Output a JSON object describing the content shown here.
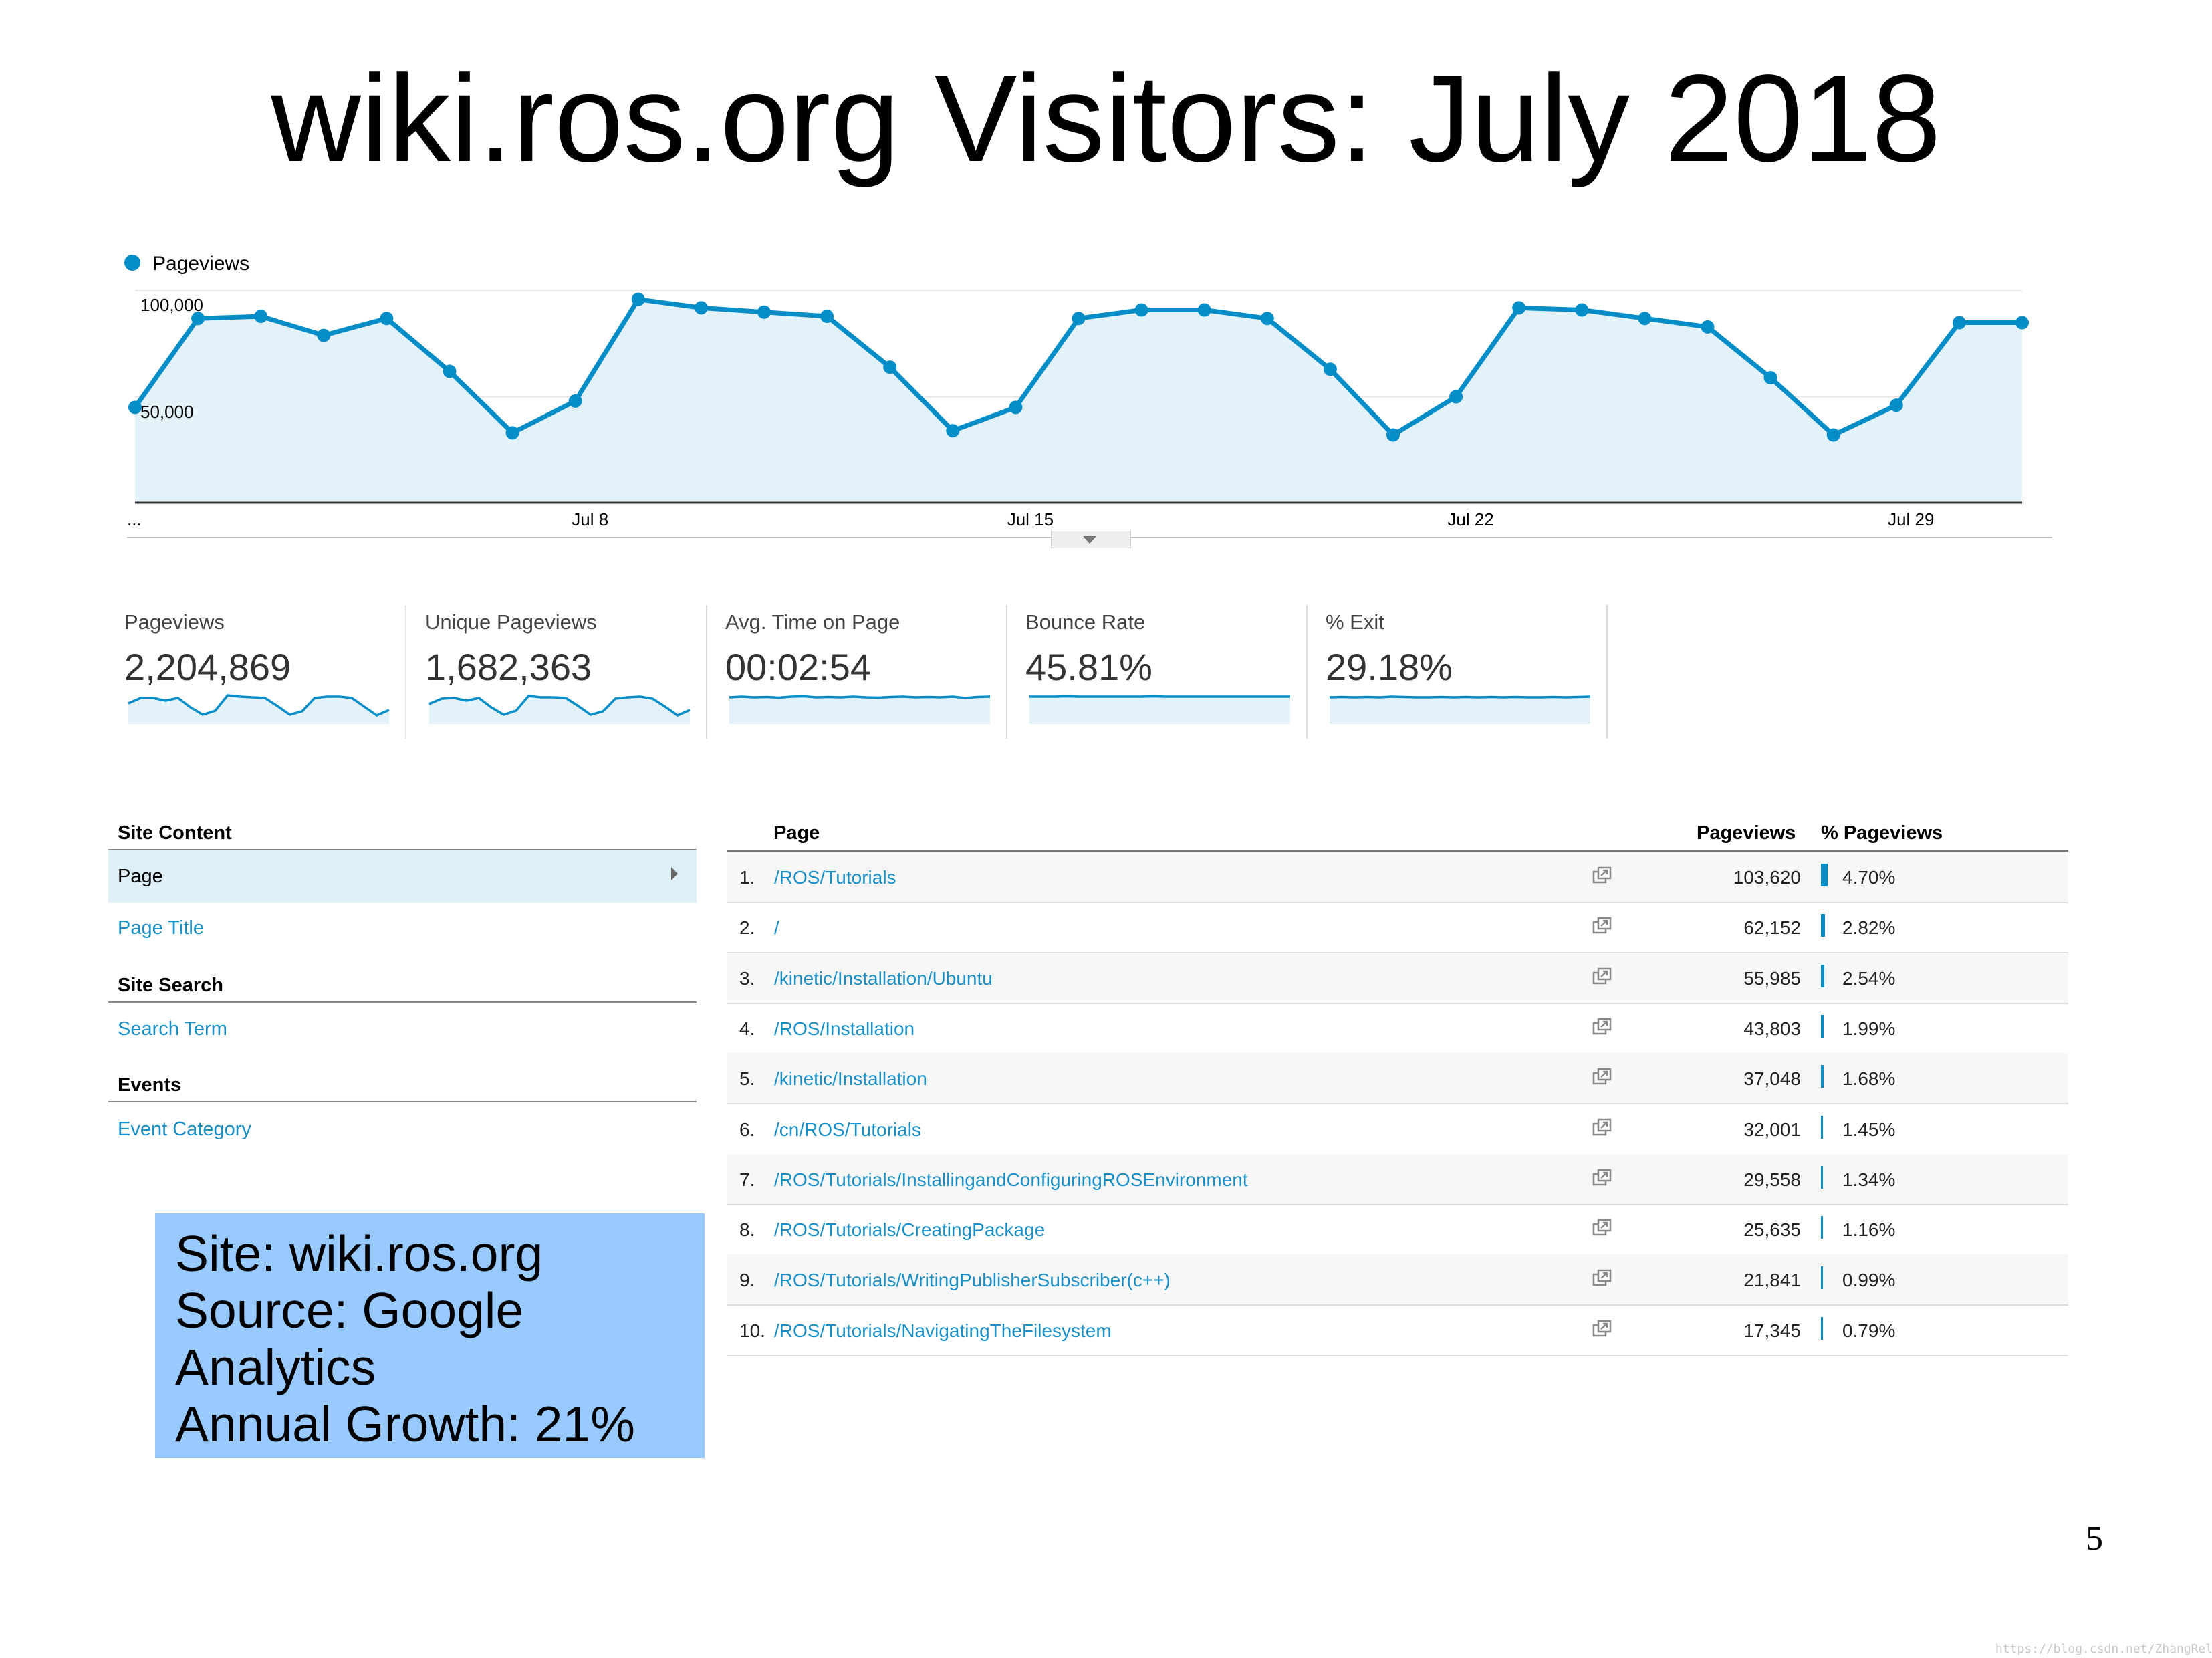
{
  "slide": {
    "title": "wiki.ros.org Visitors: July 2018",
    "page_number": "5",
    "watermark": "https://blog.csdn.net/ZhangRelay"
  },
  "colors": {
    "accent": "#058dc7",
    "fill": "#e3f1f8",
    "link": "#1a8fc6",
    "info_box": "#99caff"
  },
  "chart_data": {
    "type": "area",
    "legend": [
      "Pageviews"
    ],
    "y_ticks": [
      "100,000",
      "50,000"
    ],
    "ylim": [
      0,
      100000
    ],
    "x_ticks": [
      "...",
      "Jul 8",
      "Jul 15",
      "Jul 22",
      "Jul 29"
    ],
    "x": [
      "Jul 1",
      "Jul 2",
      "Jul 3",
      "Jul 4",
      "Jul 5",
      "Jul 6",
      "Jul 7",
      "Jul 8",
      "Jul 9",
      "Jul 10",
      "Jul 11",
      "Jul 12",
      "Jul 13",
      "Jul 14",
      "Jul 15",
      "Jul 16",
      "Jul 17",
      "Jul 18",
      "Jul 19",
      "Jul 20",
      "Jul 21",
      "Jul 22",
      "Jul 23",
      "Jul 24",
      "Jul 25",
      "Jul 26",
      "Jul 27",
      "Jul 28",
      "Jul 29",
      "Jul 30",
      "Jul 31"
    ],
    "series": [
      {
        "name": "Pageviews",
        "values": [
          45000,
          87000,
          88000,
          79000,
          87000,
          62000,
          33000,
          48000,
          96000,
          92000,
          90000,
          88000,
          64000,
          34000,
          45000,
          87000,
          91000,
          91000,
          87000,
          63000,
          32000,
          50000,
          92000,
          91000,
          87000,
          83000,
          59000,
          32000,
          46000,
          85000,
          85000
        ]
      }
    ]
  },
  "metrics": [
    {
      "label": "Pageviews",
      "value": "2,204,869",
      "spark": [
        0.62,
        0.78,
        0.78,
        0.7,
        0.78,
        0.5,
        0.28,
        0.4,
        0.86,
        0.82,
        0.8,
        0.78,
        0.54,
        0.28,
        0.38,
        0.78,
        0.82,
        0.82,
        0.78,
        0.52,
        0.26,
        0.42
      ]
    },
    {
      "label": "Unique Pageviews",
      "value": "1,682,363",
      "spark": [
        0.6,
        0.76,
        0.78,
        0.7,
        0.78,
        0.5,
        0.28,
        0.4,
        0.84,
        0.8,
        0.8,
        0.78,
        0.54,
        0.28,
        0.38,
        0.76,
        0.8,
        0.82,
        0.76,
        0.52,
        0.26,
        0.42
      ]
    },
    {
      "label": "Avg. Time on Page",
      "value": "00:02:54",
      "spark": [
        0.8,
        0.82,
        0.8,
        0.81,
        0.79,
        0.82,
        0.83,
        0.8,
        0.81,
        0.8,
        0.82,
        0.8,
        0.79,
        0.81,
        0.82,
        0.8,
        0.81,
        0.8,
        0.82,
        0.78,
        0.81,
        0.82
      ]
    },
    {
      "label": "Bounce Rate",
      "value": "45.81%",
      "spark": [
        0.82,
        0.82,
        0.82,
        0.83,
        0.82,
        0.82,
        0.82,
        0.82,
        0.82,
        0.82,
        0.83,
        0.82,
        0.82,
        0.82,
        0.82,
        0.82,
        0.82,
        0.82,
        0.82,
        0.82,
        0.82,
        0.82
      ]
    },
    {
      "label": "% Exit",
      "value": "29.18%",
      "spark": [
        0.8,
        0.81,
        0.8,
        0.81,
        0.8,
        0.82,
        0.81,
        0.8,
        0.8,
        0.81,
        0.8,
        0.81,
        0.8,
        0.81,
        0.8,
        0.81,
        0.8,
        0.8,
        0.81,
        0.8,
        0.81,
        0.82
      ]
    }
  ],
  "nav": {
    "site_content_heading": "Site Content",
    "page_label": "Page",
    "page_title_label": "Page Title",
    "site_search_heading": "Site Search",
    "search_term_label": "Search Term",
    "events_heading": "Events",
    "event_category_label": "Event Category"
  },
  "info_box": {
    "lines": [
      "Site: wiki.ros.org",
      "Source: Google",
      "Analytics",
      "Annual Growth: 21%"
    ]
  },
  "table": {
    "headers": {
      "page": "Page",
      "pageviews": "Pageviews",
      "pct": "% Pageviews"
    },
    "rows": [
      {
        "rank": "1.",
        "page": "/ROS/Tutorials",
        "pageviews": "103,620",
        "pct": "4.70%",
        "share": 0.047
      },
      {
        "rank": "2.",
        "page": "/",
        "pageviews": "62,152",
        "pct": "2.82%",
        "share": 0.0282
      },
      {
        "rank": "3.",
        "page": "/kinetic/Installation/Ubuntu",
        "pageviews": "55,985",
        "pct": "2.54%",
        "share": 0.0254
      },
      {
        "rank": "4.",
        "page": "/ROS/Installation",
        "pageviews": "43,803",
        "pct": "1.99%",
        "share": 0.0199
      },
      {
        "rank": "5.",
        "page": "/kinetic/Installation",
        "pageviews": "37,048",
        "pct": "1.68%",
        "share": 0.0168
      },
      {
        "rank": "6.",
        "page": "/cn/ROS/Tutorials",
        "pageviews": "32,001",
        "pct": "1.45%",
        "share": 0.0145
      },
      {
        "rank": "7.",
        "page": "/ROS/Tutorials/InstallingandConfiguringROSEnvironment",
        "pageviews": "29,558",
        "pct": "1.34%",
        "share": 0.0134
      },
      {
        "rank": "8.",
        "page": "/ROS/Tutorials/CreatingPackage",
        "pageviews": "25,635",
        "pct": "1.16%",
        "share": 0.0116
      },
      {
        "rank": "9.",
        "page": "/ROS/Tutorials/WritingPublisherSubscriber(c++)",
        "pageviews": "21,841",
        "pct": "0.99%",
        "share": 0.0099
      },
      {
        "rank": "10.",
        "page": "/ROS/Tutorials/NavigatingTheFilesystem",
        "pageviews": "17,345",
        "pct": "0.79%",
        "share": 0.0079
      }
    ]
  }
}
